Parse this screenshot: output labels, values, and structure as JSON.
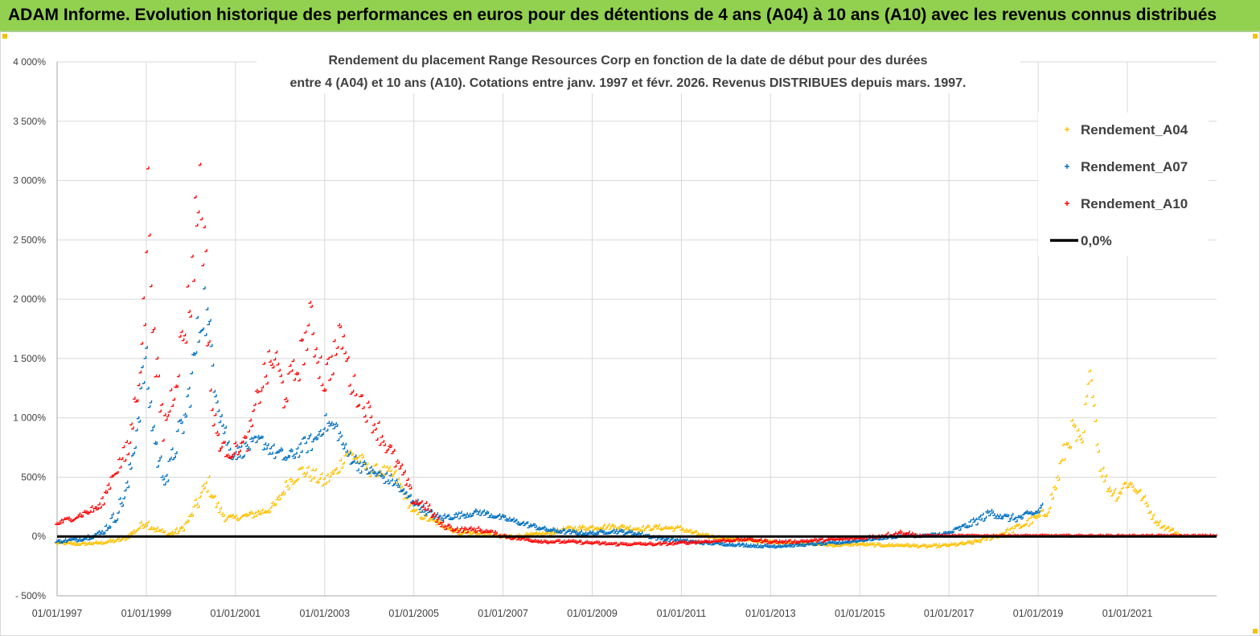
{
  "header": {
    "title": "ADAM Informe. Evolution historique des performances en euros pour des détentions de 4 ans (A04) à 10 ans (A10) avec les revenus connus distribués"
  },
  "colors": {
    "header_bg": "#92d050",
    "a04": "#ffc000",
    "a07": "#0070c0",
    "a10": "#ff0000",
    "zero": "#000000"
  },
  "chart_data": {
    "type": "scatter",
    "title_lines": [
      "Rendement du placement Range Resources Corp en fonction de la date de début pour des durées",
      "entre 4 (A04) et 10 ans (A10).  Cotations entre janv. 1997 et févr. 2026. Revenus  DISTRIBUES depuis mars. 1997."
    ],
    "x_range": [
      1997.0,
      2023.0
    ],
    "ylim": [
      -500,
      4000
    ],
    "y_ticks": [
      {
        "value": 4000,
        "label": "4 000%"
      },
      {
        "value": 3500,
        "label": "3 500%"
      },
      {
        "value": 3000,
        "label": "3 000%"
      },
      {
        "value": 2500,
        "label": "2 500%"
      },
      {
        "value": 2000,
        "label": "2 000%"
      },
      {
        "value": 1500,
        "label": "1 500%"
      },
      {
        "value": 1000,
        "label": "1 000%"
      },
      {
        "value": 500,
        "label": "500%"
      },
      {
        "value": 0,
        "label": "0%"
      },
      {
        "value": -500,
        "label": "- 500%"
      }
    ],
    "x_ticks": [
      {
        "value": 1997,
        "label": "01/01/1997"
      },
      {
        "value": 1999,
        "label": "01/01/1999"
      },
      {
        "value": 2001,
        "label": "01/01/2001"
      },
      {
        "value": 2003,
        "label": "01/01/2003"
      },
      {
        "value": 2005,
        "label": "01/01/2005"
      },
      {
        "value": 2007,
        "label": "01/01/2007"
      },
      {
        "value": 2009,
        "label": "01/01/2009"
      },
      {
        "value": 2011,
        "label": "01/01/2011"
      },
      {
        "value": 2013,
        "label": "01/01/2013"
      },
      {
        "value": 2015,
        "label": "01/01/2015"
      },
      {
        "value": 2017,
        "label": "01/01/2017"
      },
      {
        "value": 2019,
        "label": "01/01/2019"
      },
      {
        "value": 2021,
        "label": "01/01/2021"
      }
    ],
    "grid": true,
    "legend_position": "top-right",
    "legend": [
      {
        "label": "Rendement_A04",
        "key": "a04",
        "marker": "plus"
      },
      {
        "label": "Rendement_A07",
        "key": "a07",
        "marker": "plus"
      },
      {
        "label": "Rendement_A10",
        "key": "a10",
        "marker": "plus"
      },
      {
        "label": "0,0%",
        "key": "zero",
        "marker": "line"
      }
    ],
    "series": [
      {
        "name": "Rendement_A04",
        "key": "a04",
        "x": [
          1997.0,
          1997.5,
          1998.0,
          1998.5,
          1998.8,
          1999.0,
          1999.2,
          1999.5,
          1999.8,
          2000.0,
          2000.2,
          2000.4,
          2000.6,
          2000.8,
          2001.0,
          2001.3,
          2001.6,
          2001.9,
          2002.2,
          2002.5,
          2002.8,
          2003.0,
          2003.3,
          2003.5,
          2003.8,
          2004.0,
          2004.3,
          2004.6,
          2004.8,
          2005.0,
          2005.3,
          2005.6,
          2006.0,
          2006.5,
          2007.0,
          2007.5,
          2008.0,
          2008.5,
          2009.0,
          2009.5,
          2010.0,
          2010.5,
          2011.0,
          2011.5,
          2012.0,
          2012.5,
          2013.0,
          2013.5,
          2014.0,
          2014.5,
          2015.0,
          2015.5,
          2016.0,
          2016.5,
          2017.0,
          2017.5,
          2018.0,
          2018.5,
          2019.0,
          2019.2,
          2019.4,
          2019.6,
          2019.8,
          2019.9,
          2020.0,
          2020.1,
          2020.2,
          2020.4,
          2020.6,
          2020.8,
          2021.0,
          2021.2,
          2021.4,
          2021.6,
          2021.8,
          2022.0,
          2022.2,
          2022.5,
          2022.8,
          2023.0
        ],
        "values": [
          -60,
          -70,
          -60,
          -30,
          50,
          120,
          60,
          10,
          50,
          150,
          300,
          450,
          250,
          150,
          150,
          170,
          200,
          250,
          450,
          550,
          500,
          450,
          550,
          700,
          650,
          550,
          550,
          500,
          350,
          200,
          150,
          100,
          30,
          20,
          -10,
          0,
          20,
          60,
          70,
          80,
          60,
          70,
          60,
          0,
          -20,
          -40,
          -50,
          -60,
          -70,
          -80,
          -70,
          -80,
          -80,
          -90,
          -80,
          -60,
          -10,
          60,
          150,
          200,
          400,
          700,
          900,
          800,
          700,
          1100,
          1400,
          600,
          400,
          350,
          450,
          400,
          300,
          150,
          80,
          50,
          0,
          0,
          0,
          0
        ],
        "spread": [
          10,
          10,
          10,
          20,
          30,
          40,
          30,
          20,
          30,
          40,
          80,
          80,
          50,
          30,
          20,
          30,
          40,
          40,
          60,
          60,
          60,
          60,
          60,
          60,
          60,
          50,
          50,
          60,
          40,
          30,
          30,
          20,
          20,
          20,
          15,
          15,
          15,
          20,
          20,
          20,
          20,
          20,
          20,
          15,
          10,
          10,
          10,
          10,
          10,
          10,
          10,
          10,
          10,
          10,
          10,
          15,
          20,
          30,
          40,
          50,
          80,
          120,
          100,
          120,
          120,
          150,
          60,
          80,
          60,
          60,
          60,
          50,
          40,
          30,
          20,
          15,
          5,
          5,
          5,
          5
        ],
        "start": 1997.0,
        "end": 2022.2,
        "count": 760
      },
      {
        "name": "Rendement_A07",
        "key": "a07",
        "x": [
          1997.0,
          1997.5,
          1998.0,
          1998.3,
          1998.6,
          1998.8,
          1999.0,
          1999.1,
          1999.3,
          1999.5,
          1999.7,
          1999.9,
          2000.1,
          2000.3,
          2000.5,
          2000.7,
          2000.9,
          2001.1,
          2001.3,
          2001.6,
          2001.9,
          2002.2,
          2002.5,
          2002.8,
          2003.0,
          2003.3,
          2003.5,
          2003.8,
          2004.0,
          2004.3,
          2004.6,
          2004.8,
          2005.0,
          2005.3,
          2005.6,
          2006.0,
          2006.5,
          2007.0,
          2007.5,
          2008.0,
          2008.5,
          2009.0,
          2009.5,
          2010.0,
          2010.5,
          2011.0,
          2011.5,
          2012.0,
          2012.5,
          2013.0,
          2013.5,
          2014.0,
          2014.5,
          2015.0,
          2015.5,
          2016.0,
          2016.5,
          2017.0,
          2017.5,
          2018.0,
          2018.3,
          2018.6,
          2019.0,
          2019.1
        ],
        "values": [
          -50,
          -30,
          20,
          150,
          400,
          900,
          1500,
          1100,
          600,
          500,
          800,
          1000,
          1500,
          2000,
          1500,
          1000,
          700,
          700,
          750,
          800,
          700,
          650,
          750,
          800,
          950,
          900,
          700,
          600,
          550,
          500,
          450,
          350,
          300,
          200,
          150,
          170,
          200,
          150,
          100,
          50,
          30,
          20,
          40,
          20,
          -20,
          -40,
          -60,
          -70,
          -80,
          -90,
          -80,
          -70,
          -60,
          -40,
          -20,
          0,
          0,
          20,
          100,
          200,
          150,
          150,
          200,
          250
        ],
        "spread": [
          10,
          15,
          30,
          60,
          100,
          120,
          200,
          150,
          120,
          100,
          120,
          150,
          200,
          250,
          200,
          150,
          60,
          60,
          60,
          60,
          60,
          60,
          70,
          80,
          80,
          80,
          60,
          60,
          50,
          50,
          50,
          40,
          40,
          30,
          30,
          25,
          25,
          20,
          20,
          15,
          15,
          15,
          15,
          15,
          15,
          10,
          10,
          10,
          10,
          10,
          10,
          10,
          10,
          10,
          10,
          10,
          10,
          20,
          30,
          40,
          30,
          30,
          40,
          40
        ],
        "start": 1997.0,
        "end": 2019.1,
        "count": 700
      },
      {
        "name": "Rendement_A10",
        "key": "a10",
        "x": [
          1997.0,
          1997.5,
          1998.0,
          1998.3,
          1998.6,
          1998.8,
          1999.0,
          1999.05,
          1999.2,
          1999.4,
          1999.6,
          1999.8,
          2000.0,
          2000.2,
          2000.3,
          2000.5,
          2000.7,
          2000.9,
          2001.1,
          2001.3,
          2001.6,
          2001.9,
          2002.1,
          2002.4,
          2002.7,
          2003.0,
          2003.2,
          2003.4,
          2003.6,
          2003.9,
          2004.2,
          2004.5,
          2004.8,
          2005.0,
          2005.3,
          2005.6,
          2006.0,
          2006.5,
          2007.0,
          2007.5,
          2008.0,
          2008.5,
          2009.0,
          2009.5,
          2010.0,
          2010.5,
          2011.0,
          2011.5,
          2012.0,
          2012.5,
          2013.0,
          2013.5,
          2014.0,
          2014.5,
          2015.0,
          2015.5,
          2016.0,
          2016.3,
          2016.6,
          2017.0,
          2018.0,
          2019.0,
          2020.0,
          2021.0,
          2022.0,
          2023.0
        ],
        "values": [
          100,
          170,
          250,
          550,
          700,
          1200,
          2000,
          3000,
          1500,
          900,
          1200,
          1600,
          2000,
          3000,
          2600,
          1000,
          750,
          700,
          750,
          800,
          1300,
          1500,
          1200,
          1400,
          1800,
          1300,
          1500,
          1700,
          1300,
          1100,
          900,
          700,
          500,
          300,
          250,
          100,
          50,
          50,
          0,
          -30,
          -50,
          -50,
          -60,
          -70,
          -70,
          -70,
          -60,
          -50,
          -40,
          -30,
          -50,
          -50,
          -40,
          -30,
          -20,
          0,
          30,
          0,
          0,
          0,
          0,
          0,
          0,
          0,
          0,
          0
        ],
        "spread": [
          20,
          25,
          40,
          70,
          120,
          150,
          300,
          200,
          200,
          150,
          150,
          200,
          300,
          400,
          400,
          150,
          60,
          60,
          60,
          80,
          150,
          150,
          150,
          150,
          200,
          150,
          150,
          150,
          120,
          100,
          100,
          80,
          60,
          50,
          40,
          30,
          20,
          20,
          15,
          15,
          10,
          10,
          10,
          10,
          10,
          10,
          10,
          10,
          10,
          10,
          10,
          10,
          10,
          10,
          10,
          15,
          20,
          10,
          5,
          5,
          5,
          5,
          5,
          5,
          5,
          5
        ],
        "start": 1997.0,
        "end": 2023.0,
        "count": 760
      },
      {
        "name": "0,0%",
        "key": "zero",
        "type": "line",
        "x": [
          1997.0,
          2023.0
        ],
        "values": [
          0,
          0
        ]
      }
    ]
  }
}
